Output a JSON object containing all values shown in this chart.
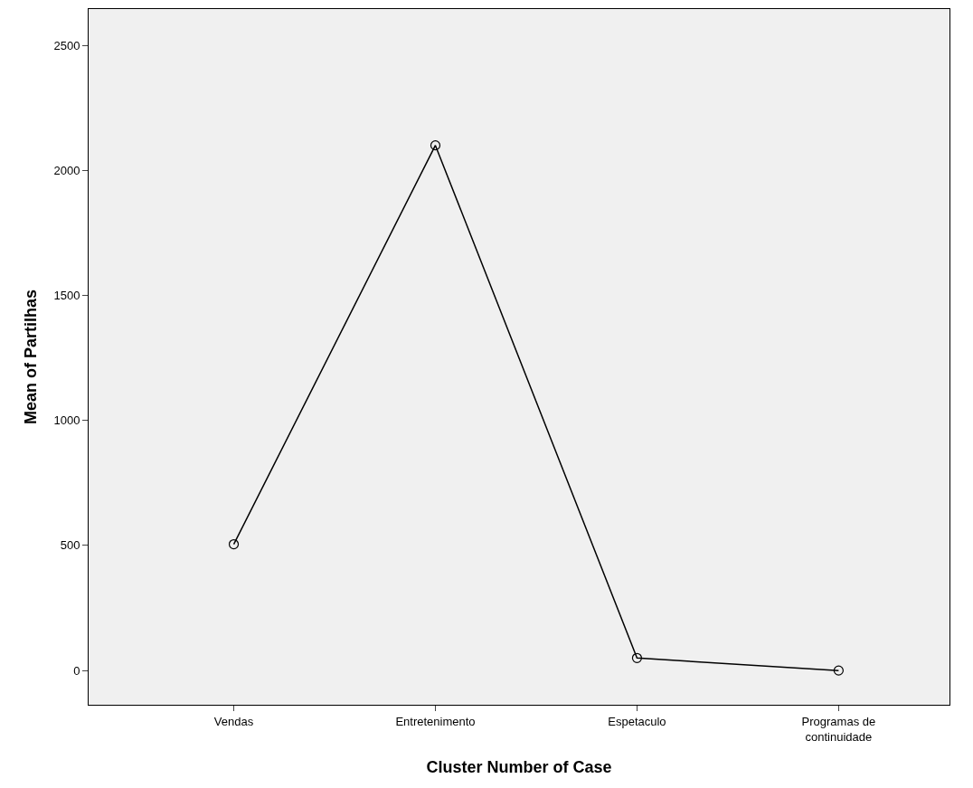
{
  "chart_data": {
    "type": "line",
    "xlabel": "Cluster Number of Case",
    "ylabel": "Mean of Partilhas",
    "categories": [
      "Vendas",
      "Entretenimento",
      "Espetaculo",
      "Programas de\ncontinuidade"
    ],
    "values": [
      505,
      2100,
      50,
      0
    ],
    "color": "#000000",
    "ylim": [
      -137,
      2645
    ],
    "yticks": [
      0,
      500,
      1000,
      1500,
      2000,
      2500
    ],
    "grid": false,
    "marker": "circle",
    "line_style": "solid"
  }
}
